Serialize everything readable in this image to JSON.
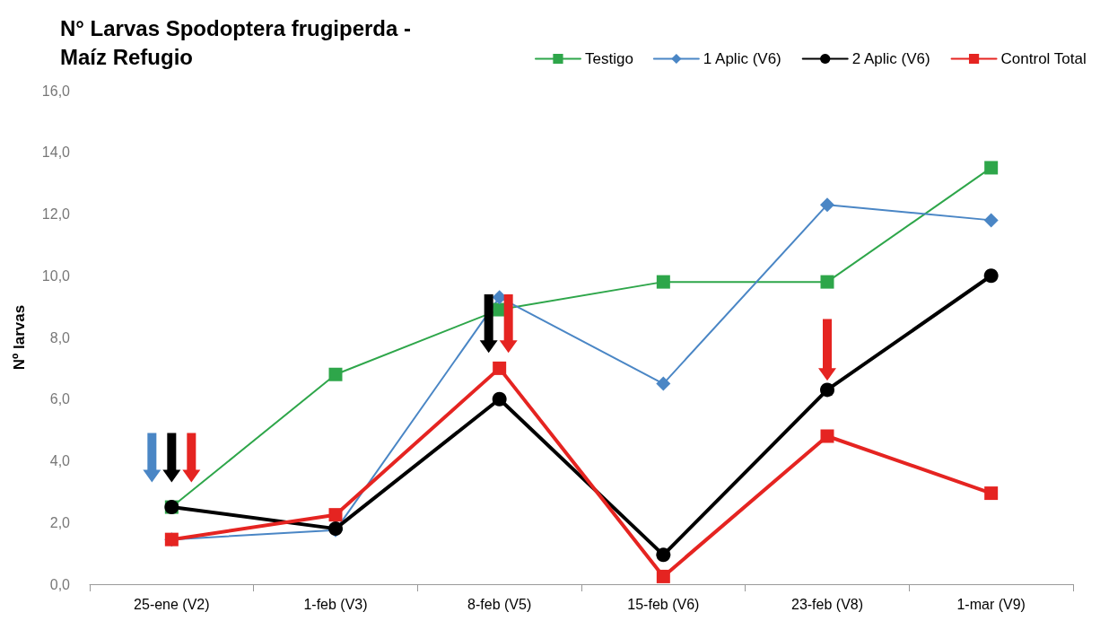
{
  "chart_data": {
    "type": "line",
    "title": "N° Larvas Spodoptera frugiperda - Maíz Refugio",
    "ylabel": "Nº larvas",
    "categories": [
      "25-ene (V2)",
      "1-feb (V3)",
      "8-feb (V5)",
      "15-feb (V6)",
      "23-feb (V8)",
      "1-mar (V9)"
    ],
    "series": [
      {
        "name": "Testigo",
        "color": "#2ea64a",
        "marker": "square",
        "values": [
          2.5,
          6.8,
          8.9,
          9.8,
          9.8,
          13.5
        ]
      },
      {
        "name": "1 Aplic (V6)",
        "color": "#4a86c5",
        "marker": "diamond",
        "values": [
          1.45,
          1.75,
          9.3,
          6.5,
          12.3,
          11.8
        ]
      },
      {
        "name": "2 Aplic (V6)",
        "color": "#000000",
        "marker": "circle",
        "values": [
          2.5,
          1.8,
          6.0,
          0.95,
          6.3,
          10.0
        ]
      },
      {
        "name": "Control Total",
        "color": "#e52421",
        "marker": "square",
        "values": [
          1.45,
          2.25,
          7.0,
          0.25,
          4.8,
          2.95
        ]
      }
    ],
    "ylim": [
      0,
      16
    ],
    "yticks": [
      {
        "value": 0,
        "label": "0,0"
      },
      {
        "value": 2,
        "label": "2,0"
      },
      {
        "value": 4,
        "label": "4,0"
      },
      {
        "value": 6,
        "label": "6,0"
      },
      {
        "value": 8,
        "label": "8,0"
      },
      {
        "value": 10,
        "label": "10,0"
      },
      {
        "value": 12,
        "label": "12,0"
      },
      {
        "value": 14,
        "label": "14,0"
      },
      {
        "value": 16,
        "label": "16,0"
      }
    ],
    "grid": false,
    "legend": "top right"
  }
}
